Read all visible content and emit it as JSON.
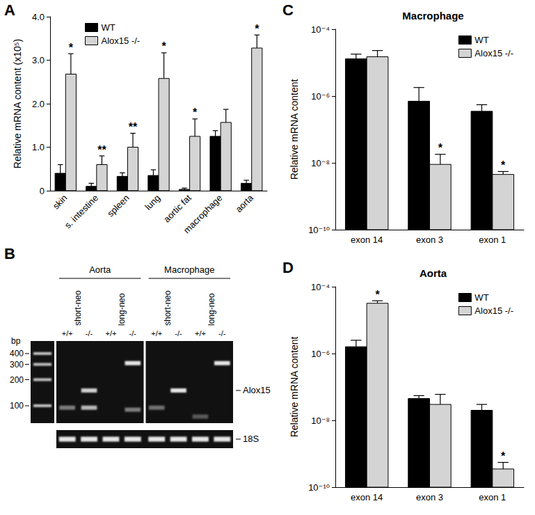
{
  "chart_data": [
    {
      "panel": "A",
      "type": "bar",
      "ylabel": "Relative mRNA content (x10⁵)",
      "categories": [
        "skin",
        "s. intestine",
        "spleen",
        "lung",
        "aortic fat",
        "macrophage",
        "aorta"
      ],
      "series": [
        {
          "name": "WT",
          "color": "#000000",
          "values": [
            0.4,
            0.1,
            0.33,
            0.35,
            0.03,
            1.25,
            0.17
          ],
          "errors": [
            0.2,
            0.07,
            0.08,
            0.13,
            0.03,
            0.13,
            0.07
          ],
          "significance": [
            null,
            null,
            null,
            null,
            null,
            null,
            null
          ]
        },
        {
          "name": "Alox15 -/-",
          "color": "#d4d4d4",
          "values": [
            2.68,
            0.6,
            1.0,
            2.58,
            1.25,
            1.57,
            3.28
          ],
          "errors": [
            0.47,
            0.2,
            0.32,
            0.59,
            0.4,
            0.3,
            0.3
          ],
          "significance": [
            "*",
            "**",
            "**",
            "*",
            "*",
            null,
            "*"
          ]
        }
      ],
      "ylim": [
        0,
        4
      ],
      "yticks": [
        0,
        {
          "value": 1,
          "label": "1.0"
        },
        {
          "value": 2,
          "label": "2.0"
        },
        {
          "value": 3,
          "label": "3.0"
        },
        {
          "value": 4,
          "label": "4.0"
        }
      ],
      "grid": false,
      "legend": "top-left"
    },
    {
      "panel": "C",
      "type": "bar",
      "title": "Macrophage",
      "ylabel": "Relative mRNA content",
      "categories": [
        "exon 14",
        "exon 3",
        "exon 1"
      ],
      "series": [
        {
          "name": "WT",
          "color": "#000000",
          "values": [
            1.3e-05,
            7e-07,
            3.5e-07
          ],
          "errors": [
            5e-06,
            1.1e-06,
            2e-07
          ],
          "significance": [
            null,
            null,
            null
          ]
        },
        {
          "name": "Alox15 -/-",
          "color": "#d4d4d4",
          "values": [
            1.5e-05,
            9e-09,
            4.5e-09
          ],
          "errors": [
            8e-06,
            9e-09,
            1e-09
          ],
          "significance": [
            null,
            "*",
            "*"
          ]
        }
      ],
      "log": "y",
      "ylim": [
        1e-10,
        0.0001
      ],
      "yticks": [
        {
          "value": 1e-10,
          "label": "10⁻¹⁰"
        },
        {
          "value": 1e-08,
          "label": "10⁻⁸"
        },
        {
          "value": 1e-06,
          "label": "10⁻⁶"
        },
        {
          "value": 0.0001,
          "label": "10⁻⁴"
        }
      ],
      "grid": false,
      "legend": "top-right"
    },
    {
      "panel": "D",
      "type": "bar",
      "title": "Aorta",
      "ylabel": "Relative mRNA content",
      "categories": [
        "exon 14",
        "exon 3",
        "exon 1"
      ],
      "series": [
        {
          "name": "WT",
          "color": "#000000",
          "values": [
            1.6e-06,
            4.5e-08,
            2e-08
          ],
          "errors": [
            9e-07,
            1e-08,
            1e-08
          ],
          "significance": [
            null,
            null,
            null
          ]
        },
        {
          "name": "Alox15 -/-",
          "color": "#d4d4d4",
          "values": [
            3.2e-05,
            3e-08,
            3.5e-10
          ],
          "errors": [
            6e-06,
            3e-08,
            2e-10
          ],
          "significance": [
            "*",
            null,
            "*"
          ]
        }
      ],
      "log": "y",
      "ylim": [
        1e-10,
        0.0001
      ],
      "yticks": [
        {
          "value": 1e-10,
          "label": "10⁻¹⁰"
        },
        {
          "value": 1e-08,
          "label": "10⁻⁸"
        },
        {
          "value": 1e-06,
          "label": "10⁻⁶"
        },
        {
          "value": 0.0001,
          "label": "10⁻⁴"
        }
      ],
      "grid": false,
      "legend": "top-right"
    }
  ],
  "gel": {
    "panel": "B",
    "size_unit": "bp",
    "ladder": [
      400,
      300,
      200,
      100
    ],
    "groups": [
      {
        "label": "Aorta",
        "primers": [
          {
            "label": "short-neo",
            "lanes": [
              {
                "genotype": "+/+",
                "bands": [
                  {
                    "bp": 95,
                    "intensity": 0.45
                  }
                ]
              },
              {
                "genotype": "-/-",
                "bands": [
                  {
                    "bp": 150,
                    "intensity": 0.8
                  },
                  {
                    "bp": 95,
                    "intensity": 0.7
                  }
                ]
              }
            ]
          },
          {
            "label": "long-neo",
            "lanes": [
              {
                "genotype": "+/+",
                "bands": []
              },
              {
                "genotype": "-/-",
                "bands": [
                  {
                    "bp": 310,
                    "intensity": 0.9
                  },
                  {
                    "bp": 90,
                    "intensity": 0.45
                  }
                ]
              }
            ]
          }
        ]
      },
      {
        "label": "Macrophage",
        "primers": [
          {
            "label": "short-neo",
            "lanes": [
              {
                "genotype": "+/+",
                "bands": [
                  {
                    "bp": 95,
                    "intensity": 0.4
                  }
                ]
              },
              {
                "genotype": "-/-",
                "bands": [
                  {
                    "bp": 150,
                    "intensity": 0.9
                  }
                ]
              }
            ]
          },
          {
            "label": "long-neo",
            "lanes": [
              {
                "genotype": "+/+",
                "bands": [
                  {
                    "bp": 75,
                    "intensity": 0.3
                  }
                ]
              },
              {
                "genotype": "-/-",
                "bands": [
                  {
                    "bp": 310,
                    "intensity": 0.9
                  }
                ]
              }
            ]
          }
        ]
      }
    ],
    "band_labels": [
      {
        "label": "Alox15",
        "bp": 150
      }
    ],
    "loading_control": "18S"
  }
}
